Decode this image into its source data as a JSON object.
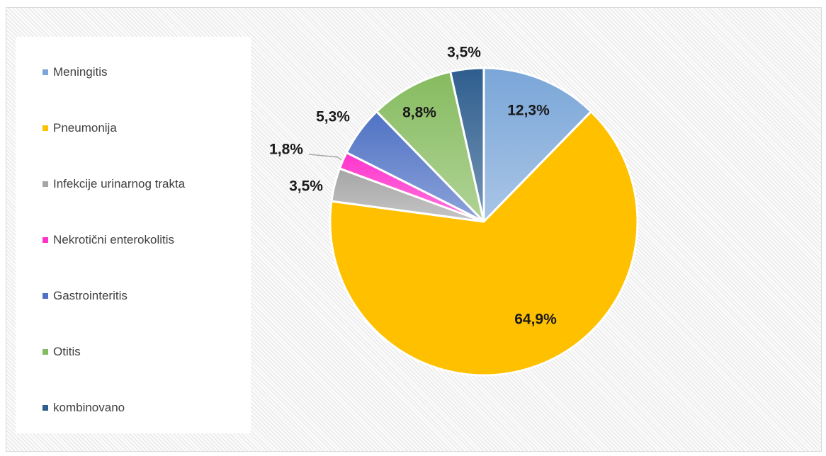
{
  "chart_data": {
    "type": "pie",
    "categories": [
      "Meningitis",
      "Pneumonija",
      "Infekcije urinarnog trakta",
      "Nekrotični enterokolitis",
      "Gastrointeritis",
      "Otitis",
      "kombinovano"
    ],
    "values": [
      12.3,
      64.9,
      3.5,
      1.8,
      5.3,
      8.8,
      3.5
    ],
    "value_labels": [
      "12,3%",
      "64,9%",
      "3,5%",
      "1,8%",
      "5,3%",
      "8,8%",
      "3,5%"
    ],
    "colors": [
      "#7aa6d8",
      "#ffc000",
      "#a5a5a5",
      "#ff33cc",
      "#4f72c4",
      "#86bb5f",
      "#2e5e8e"
    ],
    "start_angle_deg": 0,
    "direction": "clockwise",
    "legend_position": "left",
    "title": ""
  }
}
